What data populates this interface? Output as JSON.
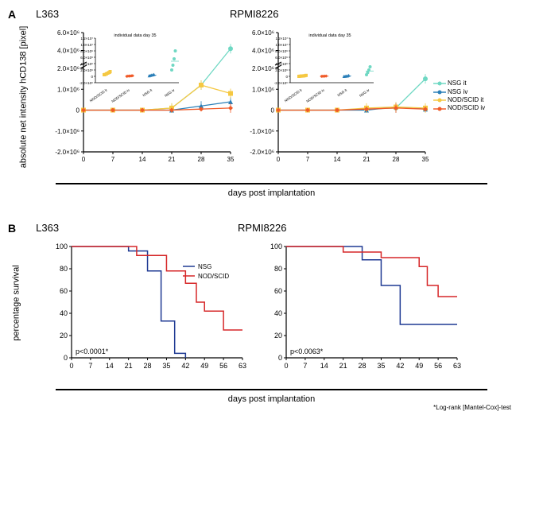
{
  "panelA": {
    "label": "A",
    "left_title": "L363",
    "right_title": "RPMI8226",
    "ylabel": "absolute net intensity hCD138 [pixel]",
    "xlabel": "days post implantation",
    "x_ticks": [
      0,
      7,
      14,
      21,
      28,
      35
    ],
    "y_ticks": [
      "-2.0×10⁶",
      "-1.0×10⁶",
      "0",
      "1.0×10⁶",
      "2.0×10⁶",
      "4.0×10⁶",
      "6.0×10⁶"
    ],
    "y_values": [
      -2,
      -1,
      0,
      1,
      2,
      4,
      6
    ],
    "legend": [
      {
        "name": "NSG it",
        "color": "#6fd8c3",
        "marker": "circle"
      },
      {
        "name": "NSG iv",
        "color": "#2a7fb8",
        "marker": "triangle"
      },
      {
        "name": "NOD/SCID it",
        "color": "#f5c842",
        "marker": "square"
      },
      {
        "name": "NOD/SCID iv",
        "color": "#f05a28",
        "marker": "diamond"
      }
    ],
    "inset_title": "individual data day 35",
    "inset_xlabels": [
      "NOD/SCID it",
      "NOD/SCID iv",
      "NSG it",
      "NSG iv"
    ],
    "inset_yticks": [
      "-2.0×10⁶",
      "0",
      "2.0×10⁶",
      "4.0×10⁶",
      "6.0×10⁶",
      "8.0×10⁶",
      "1.0×10⁷",
      "1.2×10⁷"
    ],
    "left_series": {
      "NSG_it": [
        0,
        0,
        0,
        0.1,
        1.2,
        4.2
      ],
      "NSG_iv": [
        0,
        0,
        0,
        0,
        0.2,
        0.4
      ],
      "NODSCID_it": [
        0,
        0,
        0,
        0.1,
        1.2,
        0.8
      ],
      "NODSCID_iv": [
        0,
        0,
        0,
        0,
        0.05,
        0.1
      ]
    },
    "right_series": {
      "NSG_it": [
        0,
        0,
        0,
        0.05,
        0.1,
        1.5
      ],
      "NSG_iv": [
        0,
        0,
        0,
        0,
        0.15,
        0.05
      ],
      "NODSCID_it": [
        0,
        0,
        0,
        0.1,
        0.15,
        0.1
      ],
      "NODSCID_iv": [
        0,
        0,
        0,
        0.05,
        0.1,
        0.05
      ]
    },
    "left_inset": {
      "NODSCID_it": [
        0.5,
        0.6,
        0.8,
        1.0,
        1.2,
        1.5
      ],
      "NODSCID_iv": [
        0,
        0.05,
        0.1,
        0.1,
        0.15,
        0.2
      ],
      "NSG_iv": [
        0.2,
        0.3,
        0.4,
        0.5,
        0.6
      ],
      "NSG_it": [
        2.0,
        3.5,
        5.5,
        8.0
      ]
    },
    "right_inset": {
      "NODSCID_it": [
        0,
        0.05,
        0.1,
        0.1,
        0.15,
        0.2,
        0.3
      ],
      "NODSCID_iv": [
        0,
        0.02,
        0.04,
        0.05,
        0.1
      ],
      "NSG_iv": [
        0,
        0.05,
        0.1,
        0.15,
        0.3
      ],
      "NSG_it": [
        0.5,
        1.2,
        2.0,
        3.0
      ]
    }
  },
  "panelB": {
    "label": "B",
    "left_title": "L363",
    "right_title": "RPMI8226",
    "ylabel": "percentage survival",
    "xlabel": "days post implantation",
    "x_ticks": [
      0,
      7,
      14,
      21,
      28,
      35,
      42,
      49,
      56,
      63
    ],
    "y_ticks": [
      0,
      20,
      40,
      60,
      80,
      100
    ],
    "left_p": "p<0.0001*",
    "right_p": "p<0.0063*",
    "legend": [
      {
        "name": "NSG",
        "color": "#1f3a93"
      },
      {
        "name": "NOD/SCID",
        "color": "#d62728"
      }
    ],
    "left_nsg": [
      [
        0,
        100
      ],
      [
        21,
        100
      ],
      [
        21,
        96
      ],
      [
        28,
        96
      ],
      [
        28,
        78
      ],
      [
        33,
        78
      ],
      [
        33,
        33
      ],
      [
        38,
        33
      ],
      [
        38,
        4
      ],
      [
        42,
        4
      ],
      [
        42,
        0
      ]
    ],
    "left_nod": [
      [
        0,
        100
      ],
      [
        24,
        100
      ],
      [
        24,
        92
      ],
      [
        35,
        92
      ],
      [
        35,
        78
      ],
      [
        42,
        78
      ],
      [
        42,
        67
      ],
      [
        46,
        67
      ],
      [
        46,
        50
      ],
      [
        49,
        50
      ],
      [
        49,
        42
      ],
      [
        56,
        42
      ],
      [
        56,
        25
      ],
      [
        63,
        25
      ]
    ],
    "right_nsg": [
      [
        0,
        100
      ],
      [
        28,
        100
      ],
      [
        28,
        88
      ],
      [
        35,
        88
      ],
      [
        35,
        65
      ],
      [
        42,
        65
      ],
      [
        42,
        30
      ],
      [
        63,
        30
      ]
    ],
    "right_nod": [
      [
        0,
        100
      ],
      [
        21,
        100
      ],
      [
        21,
        95
      ],
      [
        35,
        95
      ],
      [
        35,
        90
      ],
      [
        49,
        90
      ],
      [
        49,
        82
      ],
      [
        52,
        82
      ],
      [
        52,
        65
      ],
      [
        56,
        65
      ],
      [
        56,
        55
      ],
      [
        63,
        55
      ]
    ],
    "footnote": "*Log-rank [Mantel-Cox]-test"
  },
  "colors": {
    "nsg_it": "#6fd8c3",
    "nsg_iv": "#2a7fb8",
    "nodscid_it": "#f5c842",
    "nodscid_iv": "#f05a28",
    "nsg": "#1f3a93",
    "nodscid": "#d62728",
    "axis": "#000000",
    "bg": "#ffffff"
  }
}
